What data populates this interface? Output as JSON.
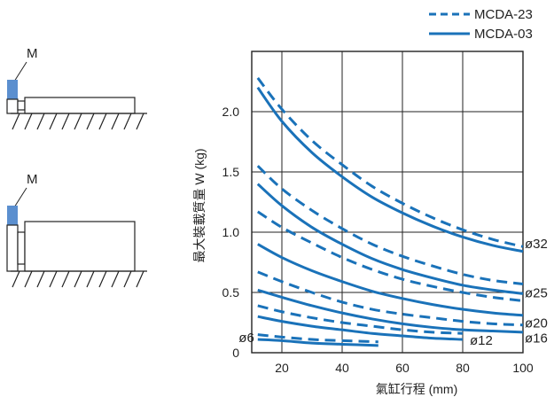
{
  "legend": {
    "dashed_label": "MCDA-23",
    "solid_label": "MCDA-03"
  },
  "diagrams": {
    "top_label": "M",
    "bottom_label": "M"
  },
  "colors": {
    "curve": "#1a72b9",
    "mass": "#5b8fcf",
    "grid": "#222222"
  },
  "chart_data": {
    "type": "line",
    "xlabel": "氣缸行程 (mm)",
    "ylabel": "最大裝載質量 W (kg)",
    "xlim": [
      10,
      100
    ],
    "ylim": [
      0,
      2.5
    ],
    "x_ticks": [
      20,
      40,
      60,
      80,
      100
    ],
    "y_ticks": [
      {
        "value": 0,
        "label": "0"
      },
      {
        "value": 0.5,
        "label": "0.5"
      },
      {
        "value": 1.0,
        "label": "1.0"
      },
      {
        "value": 1.5,
        "label": "1.5"
      },
      {
        "value": 2.0,
        "label": "2.0"
      }
    ],
    "grid": true,
    "series": [
      {
        "label": "ø32",
        "model": "MCDA-23",
        "style": "dashed",
        "x": [
          12,
          20,
          30,
          40,
          50,
          60,
          70,
          80,
          90,
          100
        ],
        "y": [
          2.28,
          2.02,
          1.76,
          1.56,
          1.38,
          1.24,
          1.12,
          1.02,
          0.94,
          0.88
        ]
      },
      {
        "label": "ø32",
        "model": "MCDA-03",
        "style": "solid",
        "x": [
          12,
          20,
          30,
          40,
          50,
          60,
          70,
          80,
          90,
          100
        ],
        "y": [
          2.2,
          1.92,
          1.66,
          1.46,
          1.29,
          1.16,
          1.05,
          0.96,
          0.89,
          0.84
        ]
      },
      {
        "label": "ø25",
        "model": "MCDA-23",
        "style": "dashed",
        "x": [
          12,
          20,
          30,
          40,
          50,
          60,
          70,
          80,
          90,
          100
        ],
        "y": [
          1.55,
          1.36,
          1.18,
          1.03,
          0.9,
          0.8,
          0.72,
          0.65,
          0.6,
          0.57
        ]
      },
      {
        "label": "ø25",
        "model": "MCDA-03",
        "style": "solid",
        "x": [
          12,
          20,
          30,
          40,
          50,
          60,
          70,
          80,
          90,
          100
        ],
        "y": [
          1.4,
          1.22,
          1.04,
          0.9,
          0.78,
          0.69,
          0.62,
          0.56,
          0.52,
          0.49
        ]
      },
      {
        "label": "ø20",
        "model": "MCDA-23",
        "style": "dashed",
        "x": [
          12,
          20,
          30,
          40,
          50,
          60,
          70,
          80,
          90,
          100
        ],
        "y": [
          1.17,
          1.04,
          0.91,
          0.79,
          0.69,
          0.61,
          0.55,
          0.5,
          0.46,
          0.43
        ]
      },
      {
        "label": "ø20",
        "model": "MCDA-03",
        "style": "solid",
        "x": [
          12,
          20,
          30,
          40,
          50,
          60,
          70,
          80,
          90,
          100
        ],
        "y": [
          0.9,
          0.79,
          0.68,
          0.59,
          0.51,
          0.45,
          0.4,
          0.36,
          0.33,
          0.31
        ]
      },
      {
        "label": "ø16",
        "model": "MCDA-23",
        "style": "dashed",
        "x": [
          12,
          20,
          30,
          40,
          50,
          60,
          70,
          80,
          90,
          100
        ],
        "y": [
          0.67,
          0.59,
          0.5,
          0.42,
          0.36,
          0.32,
          0.29,
          0.26,
          0.24,
          0.23
        ]
      },
      {
        "label": "ø16",
        "model": "MCDA-03",
        "style": "solid",
        "x": [
          12,
          20,
          30,
          40,
          50,
          60,
          70,
          80,
          90,
          100
        ],
        "y": [
          0.52,
          0.46,
          0.39,
          0.33,
          0.28,
          0.24,
          0.21,
          0.19,
          0.18,
          0.17
        ]
      },
      {
        "label": "ø12",
        "model": "MCDA-23",
        "style": "dashed",
        "x": [
          12,
          20,
          30,
          40,
          50,
          60,
          70,
          80
        ],
        "y": [
          0.39,
          0.34,
          0.29,
          0.25,
          0.22,
          0.19,
          0.17,
          0.16
        ]
      },
      {
        "label": "ø12",
        "model": "MCDA-03",
        "style": "solid",
        "x": [
          12,
          20,
          30,
          40,
          50,
          60,
          70,
          80
        ],
        "y": [
          0.3,
          0.26,
          0.22,
          0.19,
          0.16,
          0.14,
          0.12,
          0.11
        ]
      },
      {
        "label": "ø6",
        "model": "MCDA-23",
        "style": "dashed",
        "x": [
          12,
          20,
          30,
          40,
          52
        ],
        "y": [
          0.15,
          0.13,
          0.11,
          0.1,
          0.09
        ]
      },
      {
        "label": "ø6",
        "model": "MCDA-03",
        "style": "solid",
        "x": [
          12,
          20,
          30,
          40,
          52
        ],
        "y": [
          0.11,
          0.1,
          0.08,
          0.07,
          0.06
        ]
      }
    ],
    "annotations": [
      "ø32",
      "ø25",
      "ø20",
      "ø16",
      "ø12",
      "ø6"
    ]
  }
}
